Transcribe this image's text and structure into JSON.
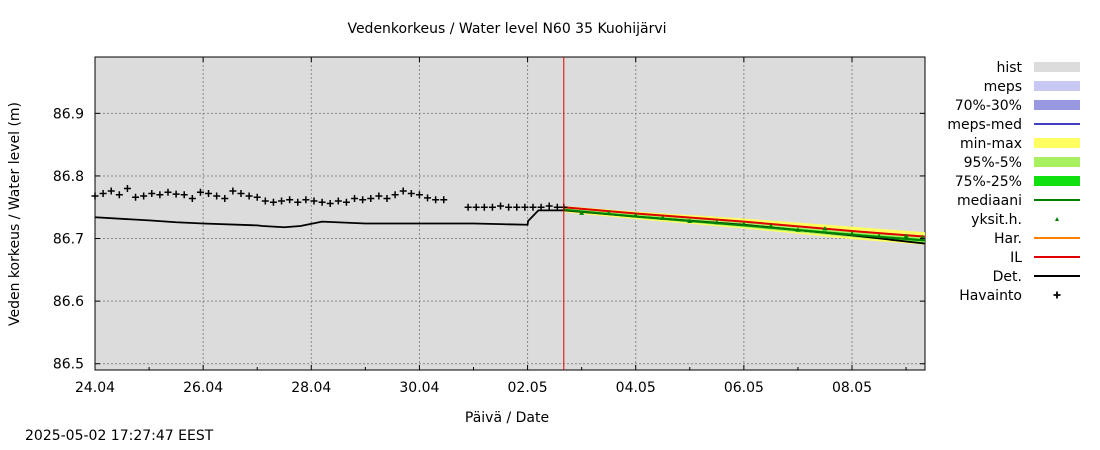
{
  "chart_data": {
    "type": "line",
    "title": "Vedenkorkeus / Water level   N60 35 Kuohijärvi",
    "xlabel": "Päivä / Date",
    "ylabel": "Veden korkeus / Water level (m)",
    "x_unit": "days since 24.04",
    "xlim": [
      0,
      15.35
    ],
    "ylim": [
      86.49,
      86.99
    ],
    "yticks": [
      86.5,
      86.6,
      86.7,
      86.8,
      86.9
    ],
    "ytick_labels": [
      "86.5",
      "86.6",
      "86.7",
      "86.8",
      "86.9"
    ],
    "xticks": [
      0,
      2,
      4,
      6,
      8,
      10,
      12,
      14
    ],
    "xtick_labels": [
      "24.04",
      "26.04",
      "28.04",
      "30.04",
      "02.05",
      "04.05",
      "06.05",
      "08.05"
    ],
    "grid": true,
    "forecast_start_x": 8.67,
    "legend_position": "right",
    "legend": [
      {
        "label": "hist",
        "kind": "box",
        "color": "#dcdcdc"
      },
      {
        "label": "meps",
        "kind": "box",
        "color": "#c8c8f5"
      },
      {
        "label": "70%-30%",
        "kind": "box",
        "color": "#9898e0"
      },
      {
        "label": "meps-med",
        "kind": "line",
        "color": "#4040c0"
      },
      {
        "label": "min-max",
        "kind": "box",
        "color": "#ffff60"
      },
      {
        "label": "95%-5%",
        "kind": "box",
        "color": "#a8f060"
      },
      {
        "label": "75%-25%",
        "kind": "box",
        "color": "#10e010"
      },
      {
        "label": "mediaani",
        "kind": "line",
        "color": "#008000"
      },
      {
        "label": "yksit.h.",
        "kind": "dot",
        "color": "#008000"
      },
      {
        "label": "Har.",
        "kind": "line",
        "color": "#ff8000"
      },
      {
        "label": "IL",
        "kind": "line",
        "color": "#e00000"
      },
      {
        "label": "Det.",
        "kind": "line",
        "color": "#000000"
      },
      {
        "label": "Havainto",
        "kind": "plus",
        "color": "#000000"
      }
    ],
    "series": [
      {
        "name": "Det.",
        "color": "#000000",
        "x": [
          0,
          1,
          1.5,
          2,
          3,
          3.1,
          3.5,
          3.8,
          4.2,
          5,
          6,
          7,
          7.5,
          8,
          8.01,
          8.2,
          8.67,
          10,
          12,
          14,
          15.35
        ],
        "y": [
          86.734,
          86.729,
          86.726,
          86.724,
          86.721,
          86.72,
          86.718,
          86.72,
          86.727,
          86.724,
          86.724,
          86.724,
          86.723,
          86.722,
          86.728,
          86.745,
          86.745,
          86.735,
          86.722,
          86.705,
          86.692
        ]
      },
      {
        "name": "IL",
        "color": "#e00000",
        "x": [
          8.67,
          10,
          12,
          14,
          15.35
        ],
        "y": [
          86.75,
          86.74,
          86.727,
          86.712,
          86.703
        ]
      },
      {
        "name": "mediaani",
        "color": "#008000",
        "x": [
          8.67,
          10,
          12,
          14,
          15.35
        ],
        "y": [
          86.746,
          86.735,
          86.721,
          86.706,
          86.697
        ]
      },
      {
        "name": "Havainto",
        "color": "#000000",
        "x": [
          0,
          0.15,
          0.3,
          0.45,
          0.6,
          0.75,
          0.9,
          1.05,
          1.2,
          1.35,
          1.5,
          1.65,
          1.8,
          1.95,
          2.1,
          2.25,
          2.4,
          2.55,
          2.7,
          2.85,
          3.0,
          3.15,
          3.3,
          3.45,
          3.6,
          3.75,
          3.9,
          4.05,
          4.2,
          4.35,
          4.5,
          4.65,
          4.8,
          4.95,
          5.1,
          5.25,
          5.4,
          5.55,
          5.7,
          5.85,
          6.0,
          6.15,
          6.3,
          6.45,
          6.6,
          6.75,
          6.9,
          7.05,
          7.2,
          7.35,
          7.5,
          7.65,
          7.8,
          7.95,
          8.1,
          8.25,
          8.4,
          8.55,
          8.67
        ],
        "y": [
          86.768,
          86.772,
          86.776,
          86.77,
          86.78,
          86.766,
          86.768,
          86.772,
          86.77,
          86.774,
          86.771,
          86.77,
          86.764,
          86.774,
          86.772,
          86.768,
          86.764,
          86.776,
          86.772,
          86.768,
          86.766,
          86.76,
          86.758,
          86.76,
          86.762,
          86.758,
          86.762,
          86.76,
          86.758,
          86.756,
          86.76,
          86.758,
          86.764,
          86.762,
          86.764,
          86.768,
          86.764,
          86.77,
          86.776,
          86.772,
          86.77,
          86.765,
          86.762,
          86.762,
          null,
          null,
          86.75,
          86.75,
          86.75,
          86.75,
          86.752,
          86.75,
          86.75,
          86.75,
          86.75,
          86.75,
          86.752,
          86.75,
          86.75
        ]
      },
      {
        "name": "yksit.h.",
        "color": "#008000",
        "x": [
          9.0,
          9.5,
          10.0,
          10.5,
          11.0,
          11.5,
          12.0,
          12.5,
          13.0,
          13.5,
          14.0,
          14.5,
          15.0,
          15.3
        ],
        "y": [
          86.741,
          86.741,
          86.737,
          86.733,
          86.728,
          86.726,
          86.723,
          86.72,
          86.714,
          86.716,
          86.708,
          86.704,
          86.704,
          86.702
        ]
      }
    ],
    "bands": [
      {
        "name": "min-max",
        "color": "#ffff60",
        "x": [
          8.67,
          10,
          12,
          14,
          15.35
        ],
        "upper": [
          86.752,
          86.743,
          86.732,
          86.719,
          86.71
        ],
        "lower": [
          86.742,
          86.731,
          86.716,
          86.699,
          86.69
        ]
      },
      {
        "name": "95%-5%",
        "color": "#a8f060",
        "x": [
          8.67,
          10,
          12,
          14,
          15.35
        ],
        "upper": [
          86.749,
          86.739,
          86.726,
          86.712,
          86.703
        ],
        "lower": [
          86.744,
          86.733,
          86.718,
          86.702,
          86.693
        ]
      },
      {
        "name": "75%-25%",
        "color": "#10e010",
        "x": [
          8.67,
          10,
          12,
          14,
          15.35
        ],
        "upper": [
          86.747,
          86.737,
          86.723,
          86.708,
          86.699
        ],
        "lower": [
          86.745,
          86.734,
          86.72,
          86.704,
          86.695
        ]
      }
    ]
  },
  "footer": {
    "timestamp": "2025-05-02 17:27:47 EEST"
  }
}
